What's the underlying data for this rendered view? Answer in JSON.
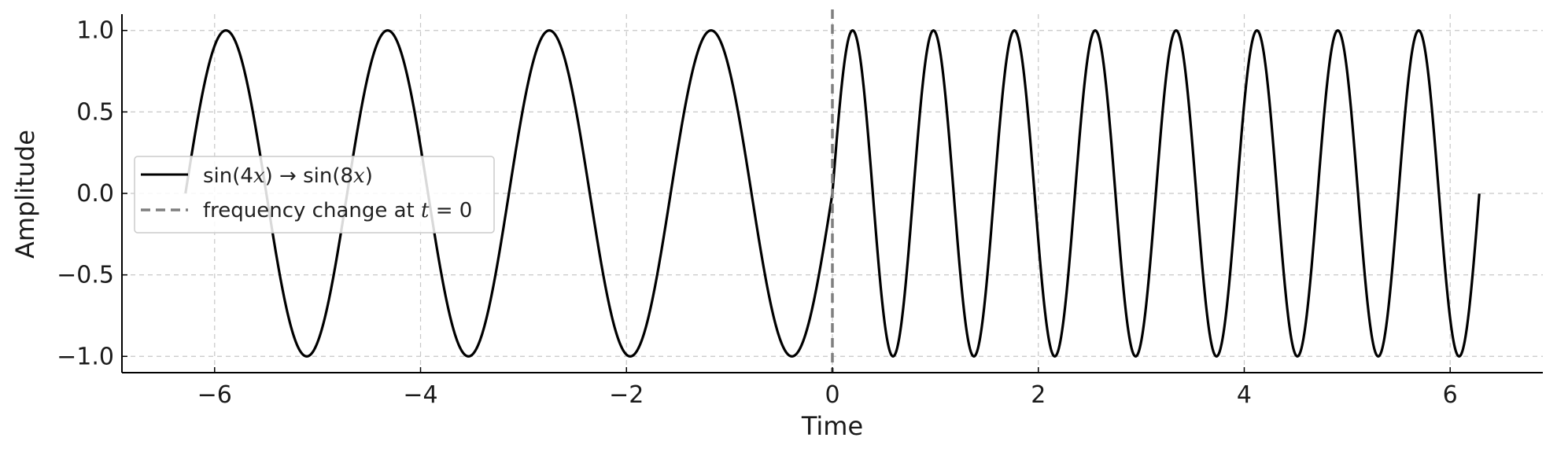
{
  "chart_data": {
    "type": "line",
    "title": "",
    "xlabel": "Time",
    "ylabel": "Amplitude",
    "xlim": [
      -6.9,
      6.9
    ],
    "ylim": [
      -1.1,
      1.1
    ],
    "x_ticks": [
      -6,
      -4,
      -2,
      0,
      2,
      4,
      6
    ],
    "x_tick_labels": [
      "−6",
      "−4",
      "−2",
      "0",
      "2",
      "4",
      "6"
    ],
    "y_ticks": [
      1.0,
      0.5,
      0.0,
      -0.5,
      -1.0
    ],
    "y_tick_labels": [
      "1.0",
      "0.5",
      "0.0",
      "−0.5",
      "−1.0"
    ],
    "grid": true,
    "legend_position": "center-left",
    "series": [
      {
        "name": "sin(4x) → sin(8x)",
        "kind": "piecewise",
        "x_range": [
          -6.283,
          6.283
        ],
        "pieces": [
          {
            "x_from": -6.283,
            "x_to": 0,
            "expr": "sin(4x)",
            "frequency": 4
          },
          {
            "x_from": 0,
            "x_to": 6.283,
            "expr": "sin(8x)",
            "frequency": 8
          }
        ],
        "color": "#000000"
      }
    ],
    "vlines": [
      {
        "name": "frequency change at t = 0",
        "x": 0,
        "color": "#7f7f7f",
        "style": "dashed"
      }
    ]
  },
  "legend": {
    "items": [
      {
        "pre": "sin(4",
        "var1": "x",
        "mid": ") → sin(8",
        "var2": "x",
        "post": ")"
      },
      {
        "pre": "frequency change at ",
        "var1": "t",
        "mid": " = 0",
        "var2": "",
        "post": ""
      }
    ]
  },
  "colors": {
    "signal": "#000000",
    "marker_line": "#7f7f7f",
    "grid": "#c8c8c8"
  }
}
